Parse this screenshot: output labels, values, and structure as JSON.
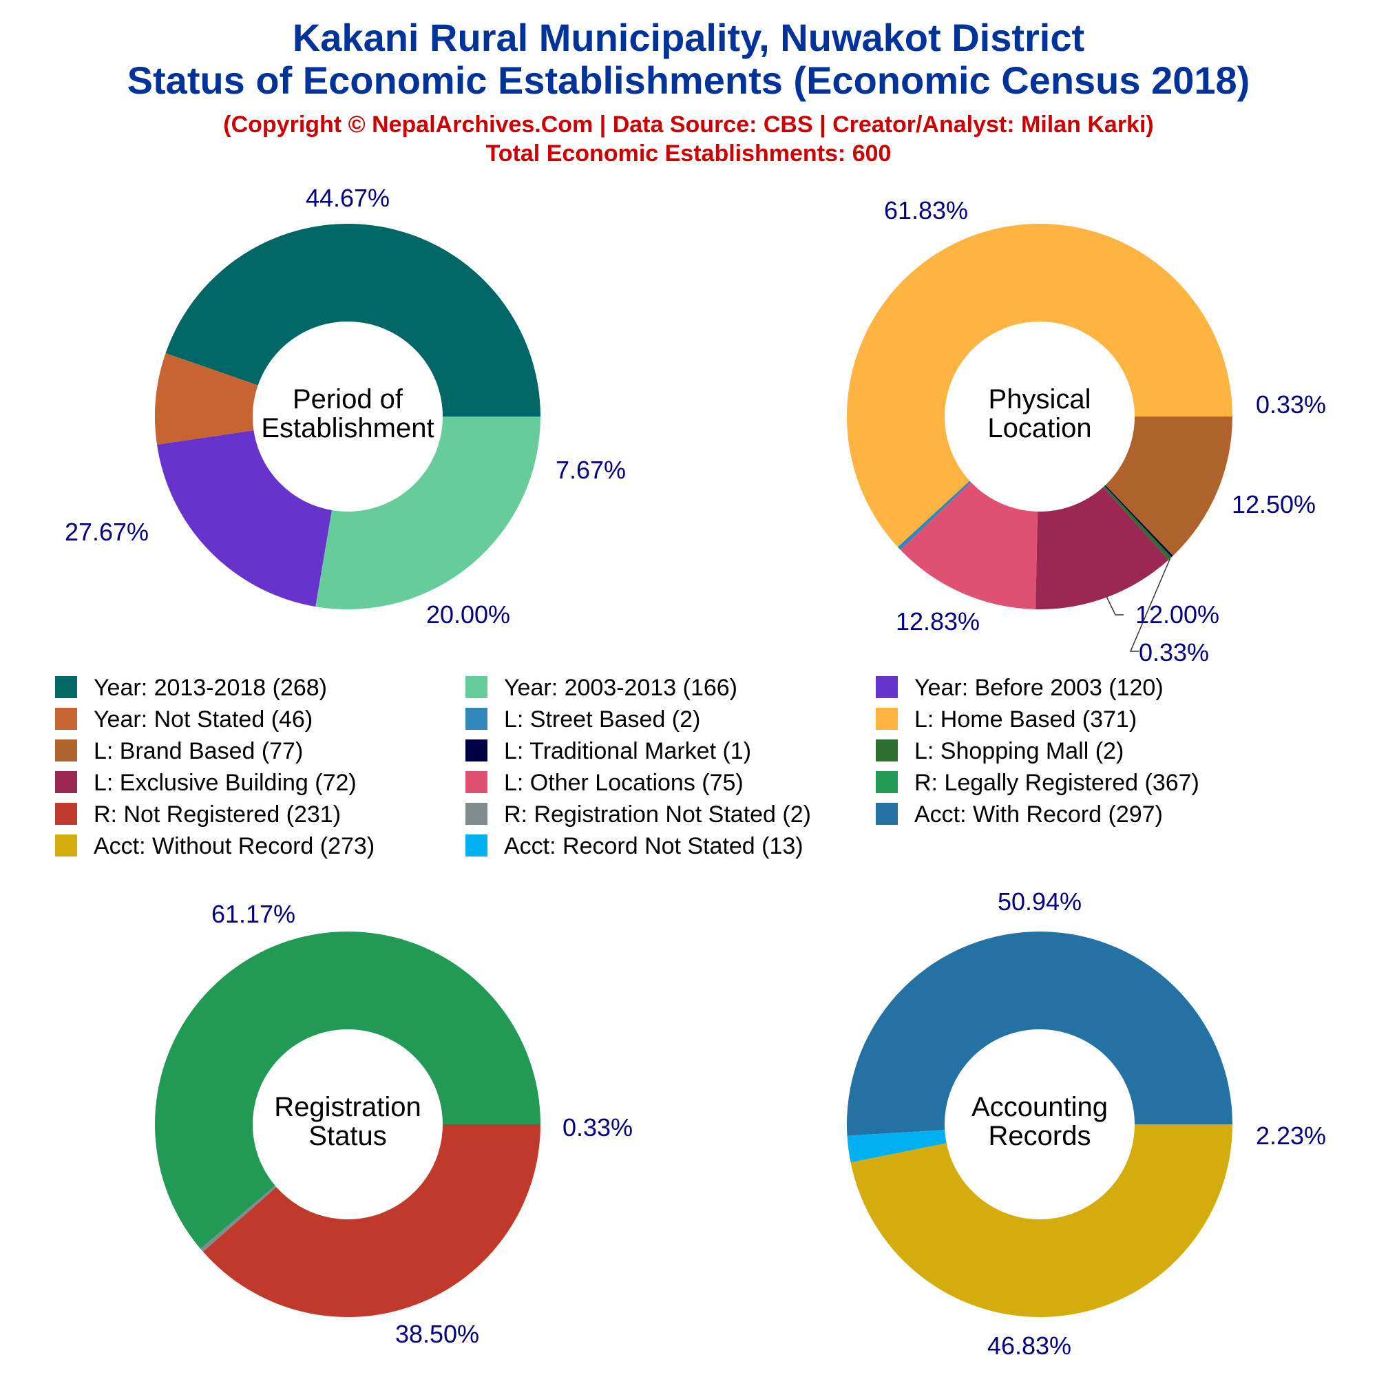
{
  "title_line1": "Kakani Rural Municipality, Nuwakot District",
  "title_line2": "Status of Economic Establishments (Economic Census 2018)",
  "copyright": "(Copyright © NepalArchives.Com | Data Source: CBS | Creator/Analyst: Milan Karki)",
  "total": "Total Economic Establishments: 600",
  "chart_data": [
    {
      "type": "pie",
      "title": "Period of Establishment",
      "center_label": [
        "Period of",
        "Establishment"
      ],
      "slices": [
        {
          "name": "Year: 2013-2018",
          "value": 268,
          "pct": "44.67%",
          "color": "#006666"
        },
        {
          "name": "Year: Not Stated",
          "value": 46,
          "pct": "7.67%",
          "color": "#c86432"
        },
        {
          "name": "Year: Before 2003",
          "value": 120,
          "pct": "20.00%",
          "color": "#6633cc"
        },
        {
          "name": "Year: 2003-2013",
          "value": 166,
          "pct": "27.67%",
          "color": "#66cc99"
        }
      ]
    },
    {
      "type": "pie",
      "title": "Physical Location",
      "center_label": [
        "Physical",
        "Location"
      ],
      "slices": [
        {
          "name": "L: Home Based",
          "value": 371,
          "pct": "61.83%",
          "color": "#ffb340"
        },
        {
          "name": "L: Street Based",
          "value": 2,
          "pct": "0.33%",
          "color": "#3388bb"
        },
        {
          "name": "L: Other Locations",
          "value": 75,
          "pct": "12.50%",
          "color": "#e05070"
        },
        {
          "name": "L: Exclusive Building",
          "value": 72,
          "pct": "12.00%",
          "color": "#9c2752"
        },
        {
          "name": "L: Shopping Mall",
          "value": 2,
          "pct": "0.33%",
          "color": "#2f6f2f"
        },
        {
          "name": "L: Traditional Market",
          "value": 1,
          "pct": "",
          "color": "#000044"
        },
        {
          "name": "L: Brand Based",
          "value": 77,
          "pct": "12.83%",
          "color": "#b0622d"
        }
      ]
    },
    {
      "type": "pie",
      "title": "Registration Status",
      "center_label": [
        "Registration",
        "Status"
      ],
      "slices": [
        {
          "name": "R: Legally Registered",
          "value": 367,
          "pct": "61.17%",
          "color": "#229955"
        },
        {
          "name": "R: Registration Not Stated",
          "value": 2,
          "pct": "0.33%",
          "color": "#7f8c8d"
        },
        {
          "name": "R: Not Registered",
          "value": 231,
          "pct": "38.50%",
          "color": "#c0392b"
        }
      ]
    },
    {
      "type": "pie",
      "title": "Accounting Records",
      "center_label": [
        "Accounting",
        "Records"
      ],
      "slices": [
        {
          "name": "Acct: With Record",
          "value": 297,
          "pct": "50.94%",
          "color": "#2471a3"
        },
        {
          "name": "Acct: Record Not Stated",
          "value": 13,
          "pct": "2.23%",
          "color": "#00b0f0"
        },
        {
          "name": "Acct: Without Record",
          "value": 273,
          "pct": "46.83%",
          "color": "#d4ac0d"
        }
      ]
    }
  ],
  "legend": [
    {
      "label": "Year: 2013-2018 (268)",
      "color": "#006666"
    },
    {
      "label": "Year: 2003-2013 (166)",
      "color": "#66cc99"
    },
    {
      "label": "Year: Before 2003 (120)",
      "color": "#6633cc"
    },
    {
      "label": "Year: Not Stated (46)",
      "color": "#c86432"
    },
    {
      "label": "L: Street Based (2)",
      "color": "#3388bb"
    },
    {
      "label": "L: Home Based (371)",
      "color": "#ffb340"
    },
    {
      "label": "L: Brand Based (77)",
      "color": "#b0622d"
    },
    {
      "label": "L: Traditional Market (1)",
      "color": "#000044"
    },
    {
      "label": "L: Shopping Mall (2)",
      "color": "#2f6f2f"
    },
    {
      "label": "L: Exclusive Building (72)",
      "color": "#9c2752"
    },
    {
      "label": "L: Other Locations (75)",
      "color": "#e05070"
    },
    {
      "label": "R: Legally Registered (367)",
      "color": "#229955"
    },
    {
      "label": "R: Not Registered (231)",
      "color": "#c0392b"
    },
    {
      "label": "R: Registration Not Stated (2)",
      "color": "#7f8c8d"
    },
    {
      "label": "Acct: With Record (297)",
      "color": "#2471a3"
    },
    {
      "label": "Acct: Without Record (273)",
      "color": "#d4ac0d"
    },
    {
      "label": "Acct: Record Not Stated (13)",
      "color": "#00b0f0"
    }
  ]
}
